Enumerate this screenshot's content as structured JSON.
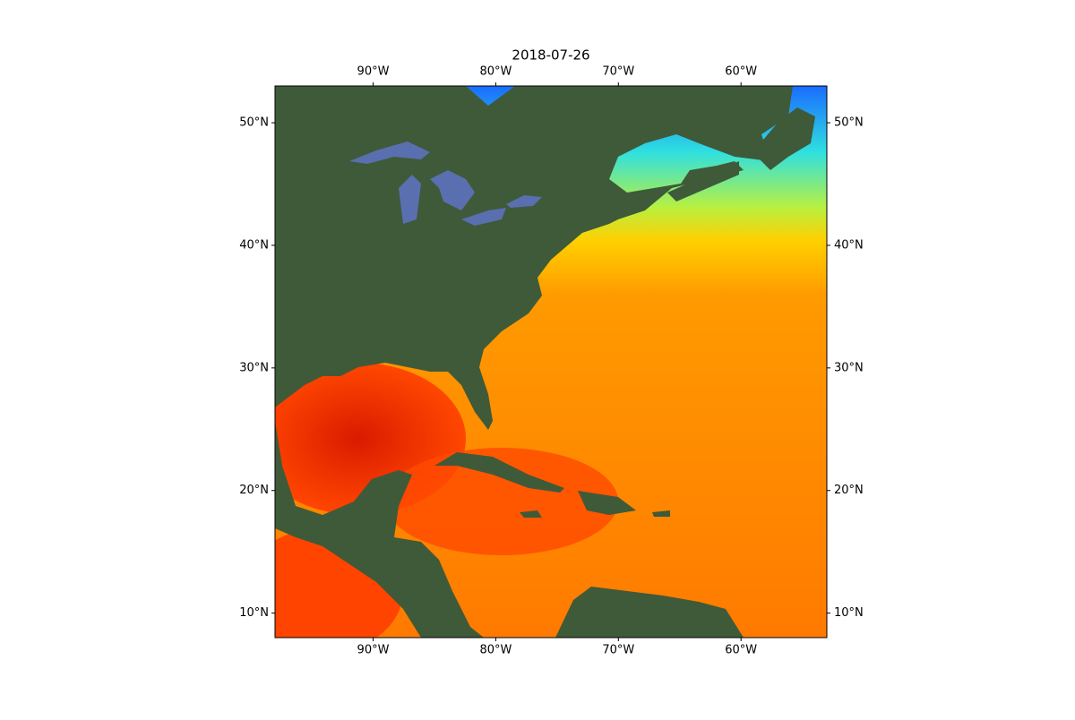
{
  "chart_data": {
    "type": "map",
    "title": "2018-07-26",
    "xlim": [
      -98,
      -53
    ],
    "ylim": [
      8,
      53
    ],
    "xticks": [
      {
        "value": -90,
        "label": "90°W"
      },
      {
        "value": -80,
        "label": "80°W"
      },
      {
        "value": -70,
        "label": "70°W"
      },
      {
        "value": -60,
        "label": "60°W"
      }
    ],
    "yticks": [
      {
        "value": 10,
        "label": "10°N"
      },
      {
        "value": 20,
        "label": "20°N"
      },
      {
        "value": 30,
        "label": "30°N"
      },
      {
        "value": 40,
        "label": "40°N"
      },
      {
        "value": 50,
        "label": "50°N"
      }
    ]
  }
}
